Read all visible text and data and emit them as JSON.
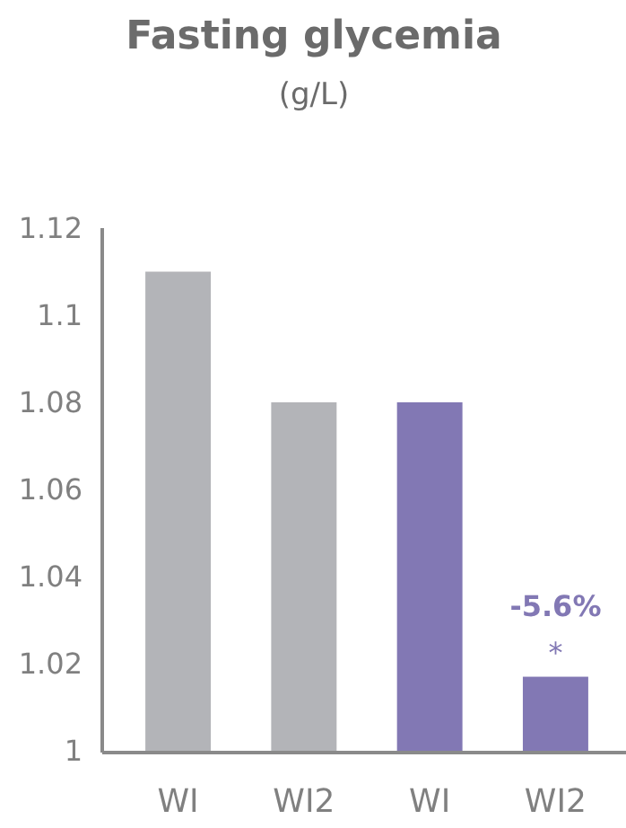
{
  "chart_data": {
    "type": "bar",
    "title": "Fasting glycemia",
    "subtitle": "(g/L)",
    "categories": [
      "WI",
      "WI2",
      "WI",
      "WI2"
    ],
    "values": [
      1.11,
      1.08,
      1.08,
      1.017
    ],
    "colors": [
      "#b3b4b8",
      "#b3b4b8",
      "#8278b4",
      "#8278b4"
    ],
    "ylim": [
      1,
      1.12
    ],
    "yticks": [
      1,
      1.02,
      1.04,
      1.06,
      1.08,
      1.1,
      1.12
    ],
    "annotations": [
      "-5.6%",
      "*"
    ],
    "grid": false
  }
}
